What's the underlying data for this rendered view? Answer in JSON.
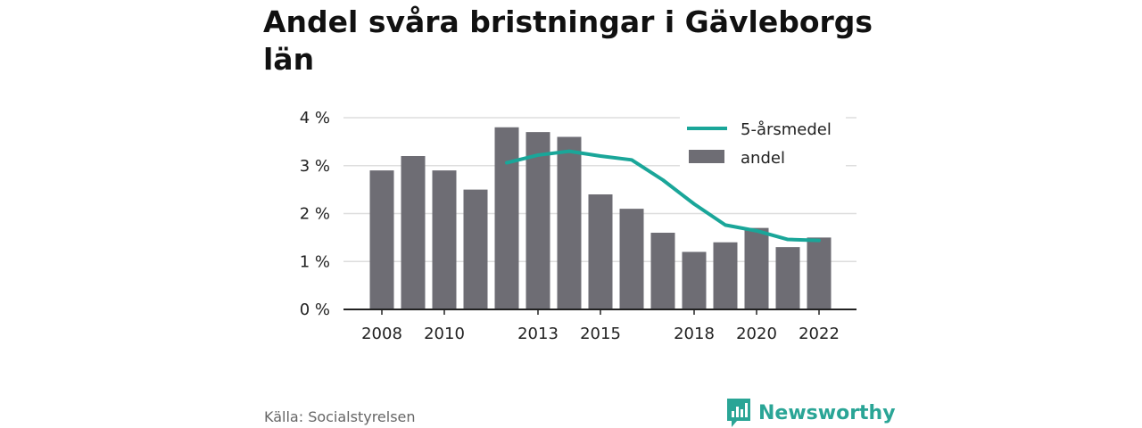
{
  "header": {
    "title": "Andel svåra bristningar i Gävleborgs län"
  },
  "footer": {
    "source": "Källa: Socialstyrelsen",
    "brand": "Newsworthy"
  },
  "colors": {
    "bar": "#6e6d74",
    "line": "#1aa699",
    "grid": "#dddddd",
    "axis": "#222222"
  },
  "chart_data": {
    "type": "bar",
    "title": "Andel svåra bristningar i Gävleborgs län",
    "xlabel": "",
    "ylabel": "",
    "ylim": [
      0,
      4
    ],
    "yticks": [
      0,
      1,
      2,
      3,
      4
    ],
    "ytick_labels": [
      "0 %",
      "1 %",
      "2 %",
      "3 %",
      "4 %"
    ],
    "xticks": [
      2008,
      2010,
      2013,
      2015,
      2018,
      2020,
      2022
    ],
    "xtick_labels": [
      "2008",
      "2010",
      "2013",
      "2015",
      "2018",
      "2020",
      "2022"
    ],
    "grid": true,
    "legend_position": "top-right",
    "categories": [
      2008,
      2009,
      2010,
      2011,
      2012,
      2013,
      2014,
      2015,
      2016,
      2017,
      2018,
      2019,
      2020,
      2021,
      2022
    ],
    "series": [
      {
        "name": "andel",
        "type": "bar",
        "values": [
          2.9,
          3.2,
          2.9,
          2.5,
          3.8,
          3.7,
          3.6,
          2.4,
          2.1,
          1.6,
          1.2,
          1.4,
          1.7,
          1.3,
          1.5
        ]
      },
      {
        "name": "5-årsmedel",
        "type": "line",
        "x": [
          2012,
          2013,
          2014,
          2015,
          2016,
          2017,
          2018,
          2019,
          2020,
          2021,
          2022
        ],
        "values": [
          3.06,
          3.22,
          3.3,
          3.2,
          3.12,
          2.7,
          2.2,
          1.76,
          1.64,
          1.46,
          1.44
        ]
      }
    ]
  }
}
